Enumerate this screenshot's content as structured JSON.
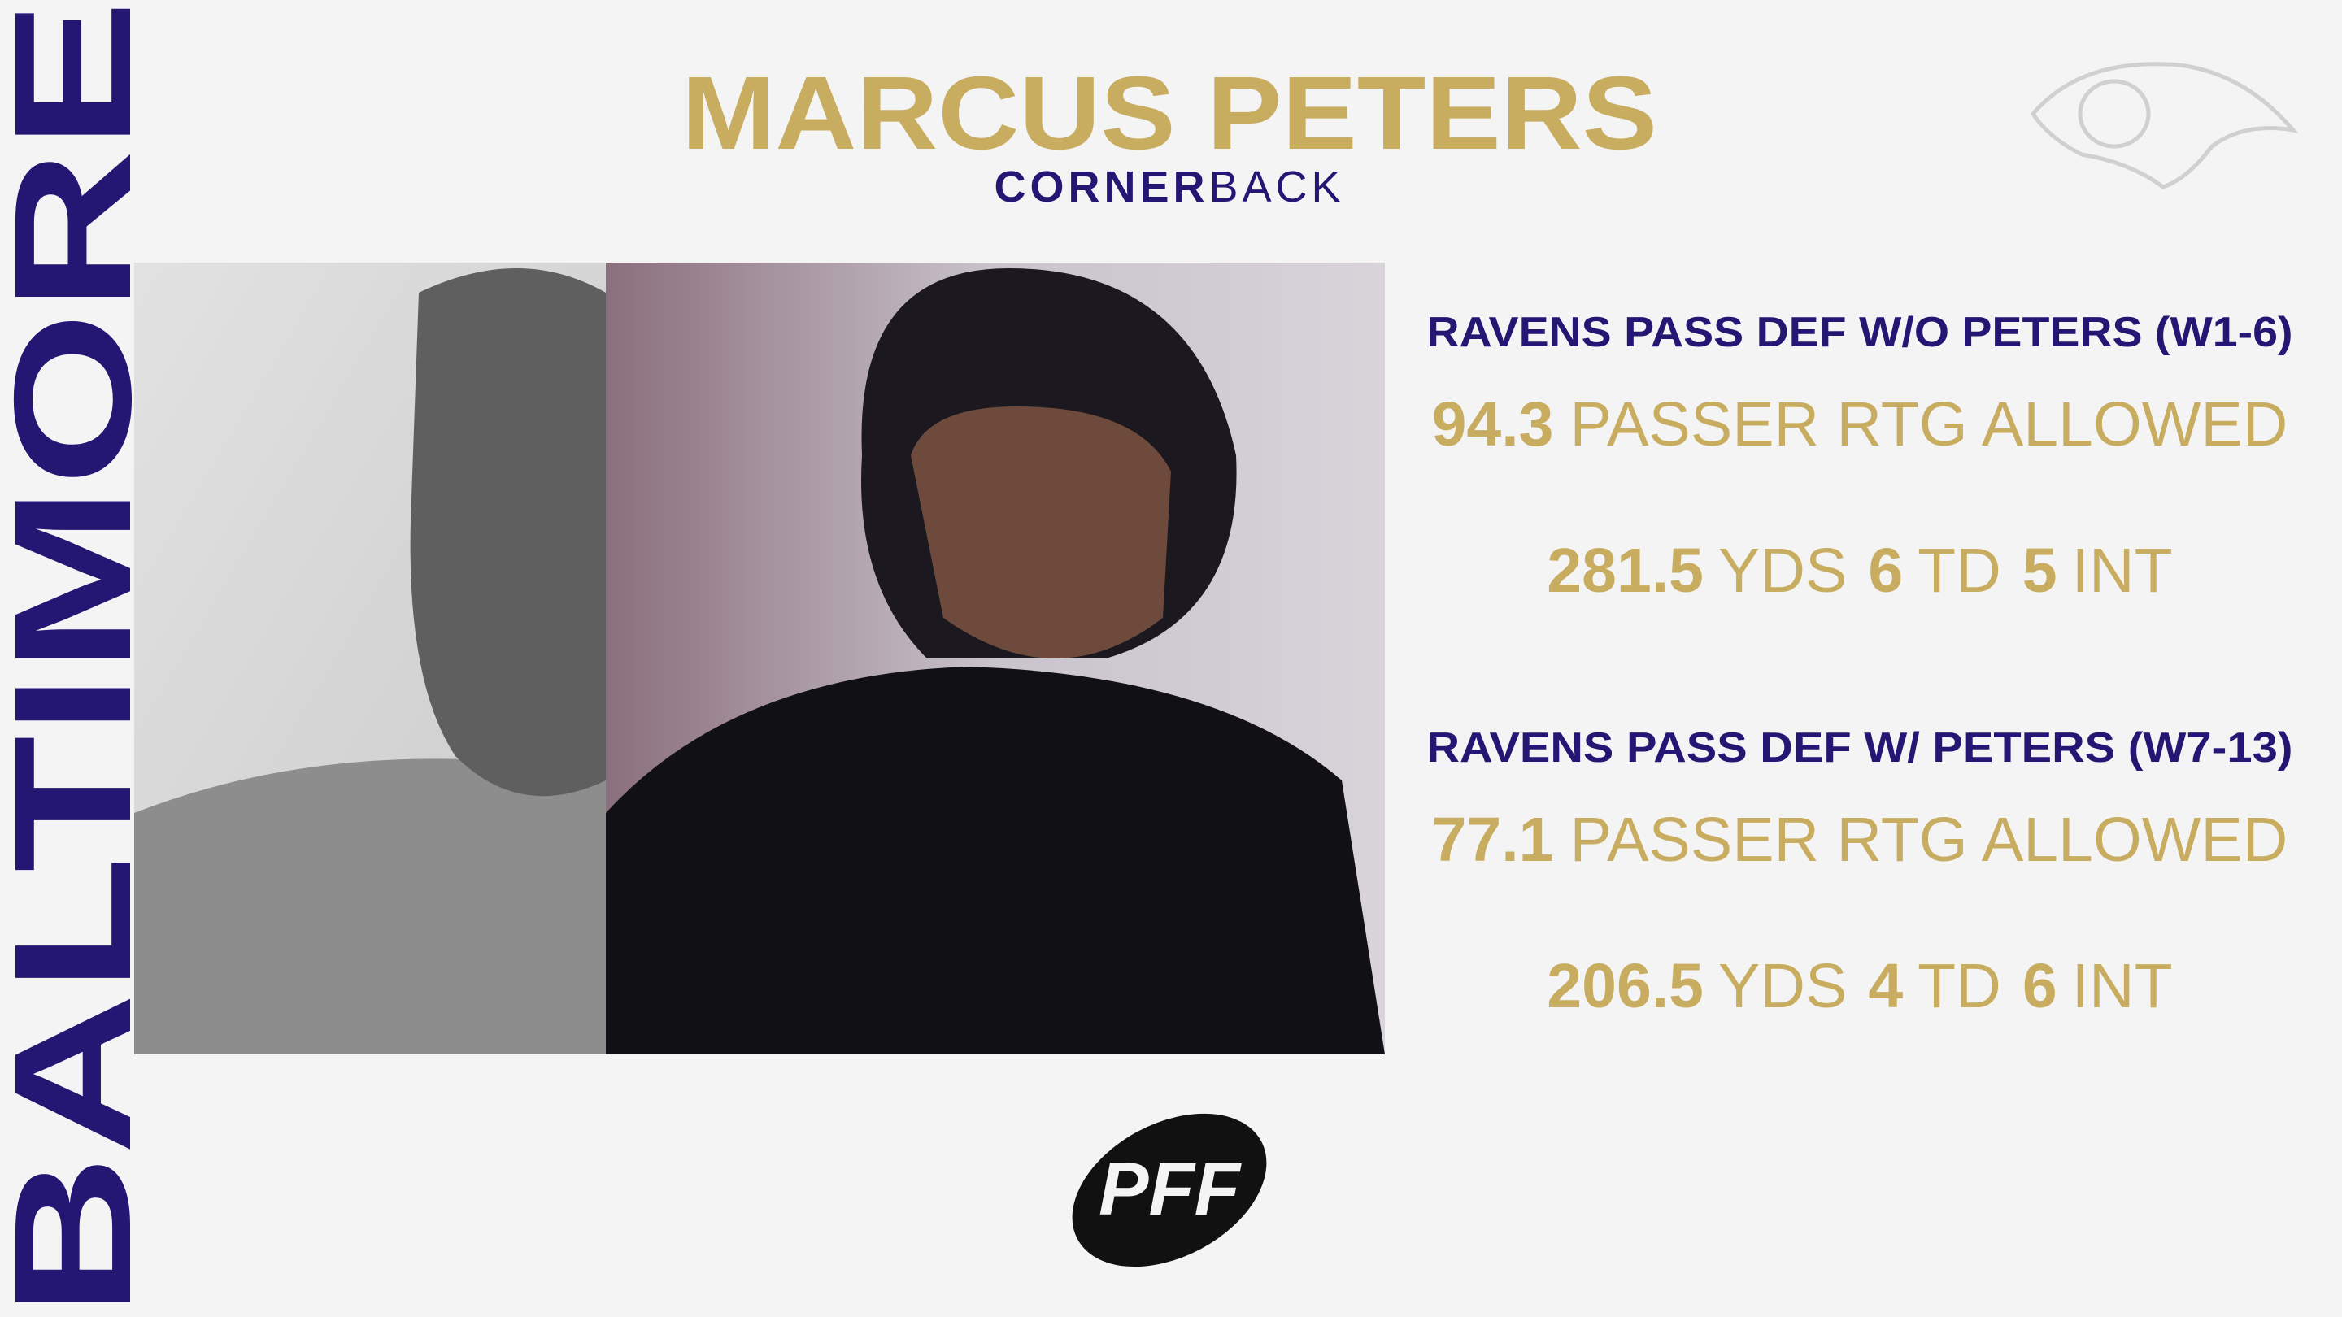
{
  "sidebar": {
    "text": "BALTIMORE"
  },
  "header": {
    "title": "MARCUS PETERS",
    "subtitle_bold": "CORNER",
    "subtitle_light": "BACK"
  },
  "stats": [
    {
      "heading": "RAVENS PASS DEF W/O PETERS (W1-6)",
      "rating": {
        "value": 94.3,
        "label": "PASSER RTG ALLOWED"
      },
      "line": [
        {
          "value": 281.5,
          "label": "YDS"
        },
        {
          "value": 6,
          "label": "TD"
        },
        {
          "value": 5,
          "label": "INT"
        }
      ]
    },
    {
      "heading": "RAVENS PASS DEF W/ PETERS (W7-13)",
      "rating": {
        "value": 77.1,
        "label": "PASSER RTG ALLOWED"
      },
      "line": [
        {
          "value": 206.5,
          "label": "YDS"
        },
        {
          "value": 4,
          "label": "TD"
        },
        {
          "value": 6,
          "label": "INT"
        }
      ]
    }
  ],
  "logo": {
    "text": "PFF"
  }
}
